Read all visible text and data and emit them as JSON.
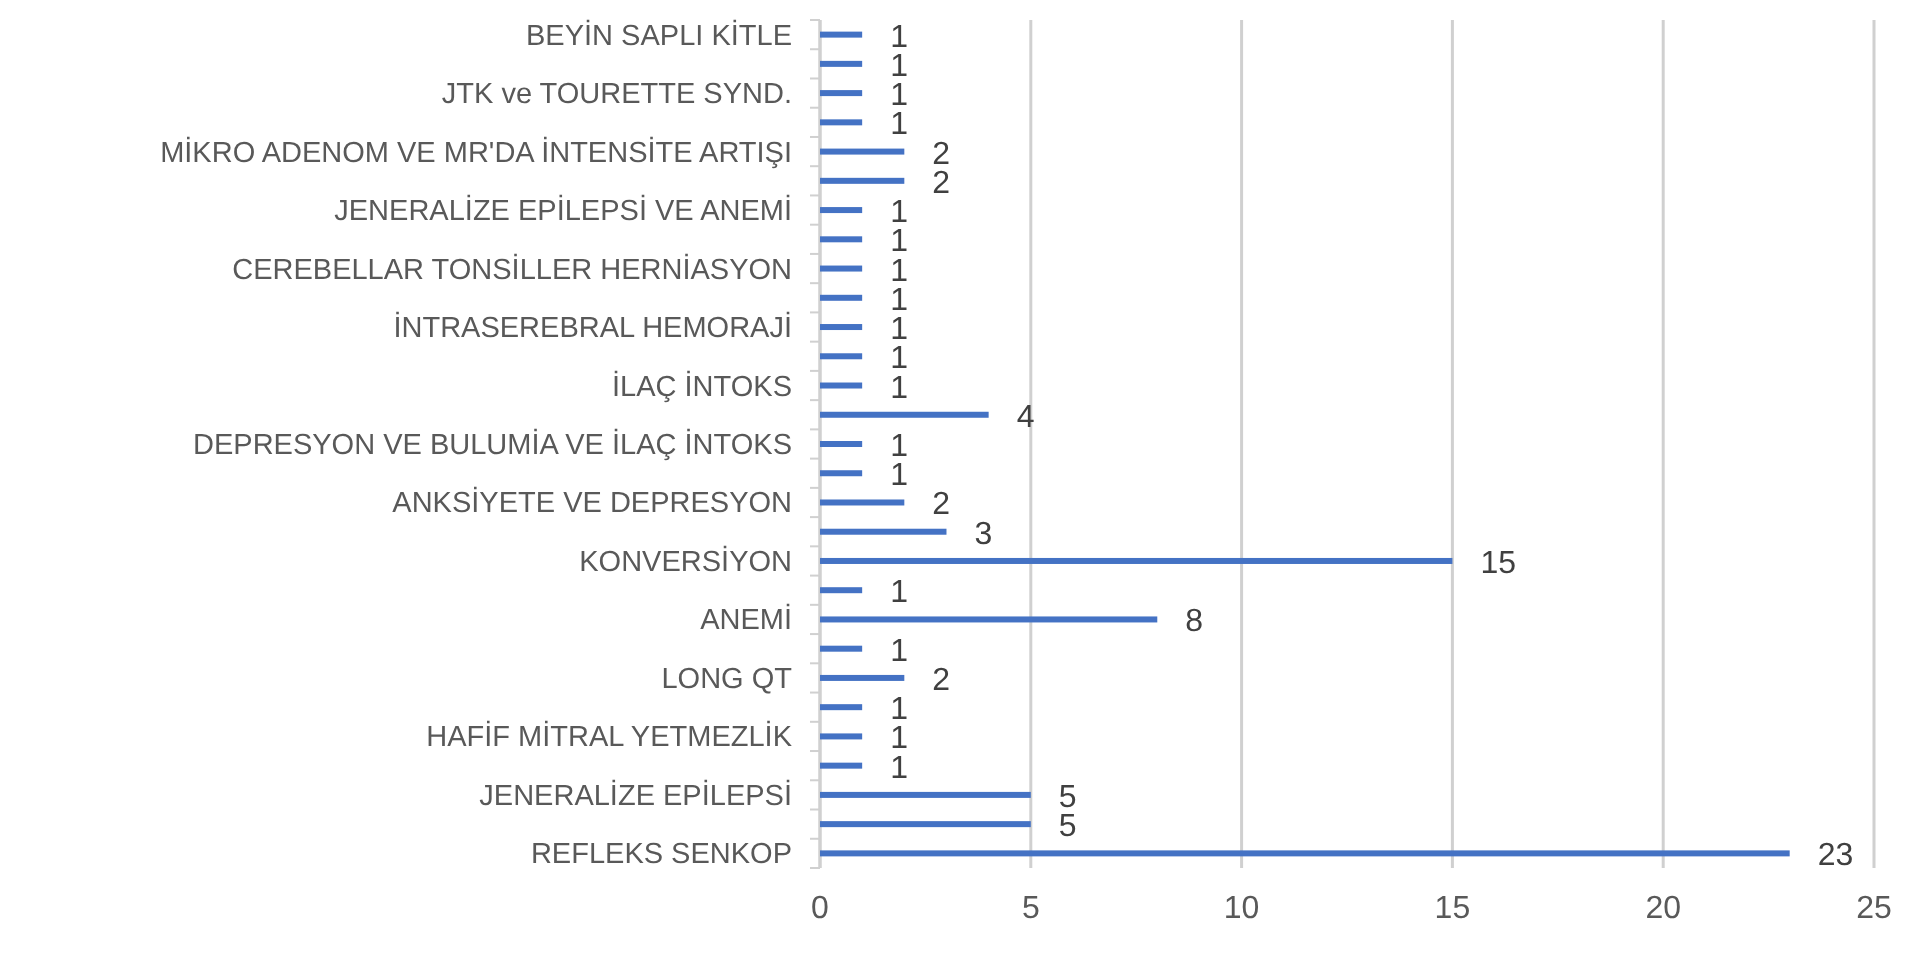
{
  "chart_data": {
    "type": "bar",
    "orientation": "horizontal",
    "categories": [
      "BEYİN SAPLI KİTLE",
      null,
      "JTK ve TOURETTE SYND.",
      null,
      "MİKRO ADENOM VE MR'DA İNTENSİTE ARTIŞI",
      null,
      "JENERALİZE EPİLEPSİ VE ANEMİ",
      null,
      "CEREBELLAR TONSİLLER HERNİASYON",
      null,
      "İNTRASEREBRAL HEMORAJİ",
      null,
      "İLAÇ İNTOKS",
      null,
      "DEPRESYON VE BULUMİA VE İLAÇ İNTOKS",
      null,
      "ANKSİYETE VE DEPRESYON",
      null,
      "KONVERSİYON",
      null,
      "ANEMİ",
      null,
      "LONG QT",
      null,
      "HAFİF MİTRAL YETMEZLİK",
      null,
      "JENERALİZE EPİLEPSİ",
      null,
      "REFLEKS SENKOP"
    ],
    "values": [
      1,
      1,
      1,
      1,
      2,
      2,
      1,
      1,
      1,
      1,
      1,
      1,
      1,
      4,
      1,
      1,
      2,
      3,
      15,
      1,
      8,
      1,
      2,
      1,
      1,
      1,
      5,
      5,
      23
    ],
    "color": "#4472c4",
    "xlim": [
      0,
      25
    ],
    "xticks": [
      0,
      5,
      10,
      15,
      20,
      25
    ],
    "grid": "x",
    "data_labels": true
  }
}
